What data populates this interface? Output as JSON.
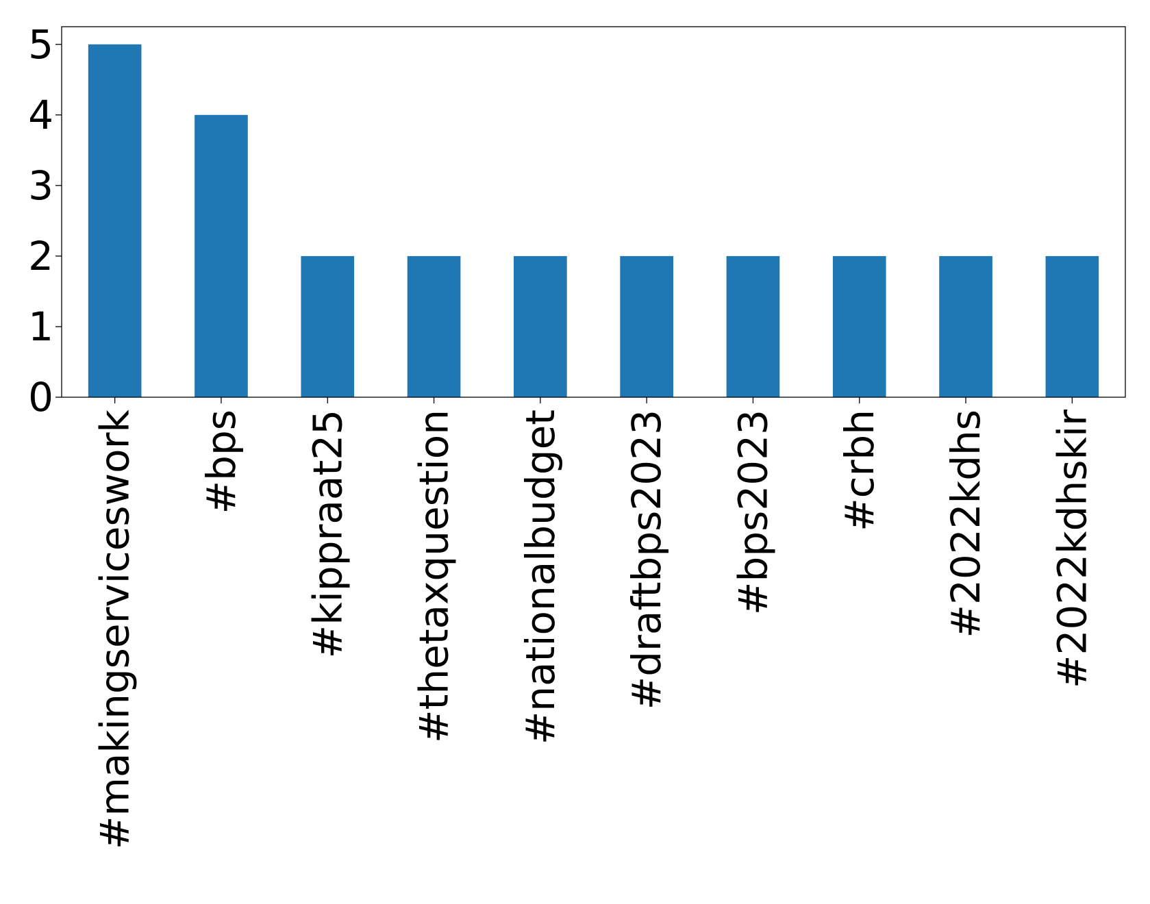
{
  "chart_data": {
    "type": "bar",
    "title": "",
    "xlabel": "",
    "ylabel": "",
    "categories": [
      "#makingserviceswork",
      "#bps",
      "#kippraat25",
      "#thetaxquestion",
      "#nationalbudget",
      "#draftbps2023",
      "#bps2023",
      "#crbh",
      "#2022kdhs",
      "#2022kdhskir"
    ],
    "values": [
      5,
      4,
      2,
      2,
      2,
      2,
      2,
      2,
      2,
      2
    ],
    "yticks": [
      0,
      1,
      2,
      3,
      4,
      5
    ],
    "ylim": [
      0,
      5.25
    ],
    "grid": false,
    "legend": "none",
    "bar_color": "#1f77b4"
  }
}
